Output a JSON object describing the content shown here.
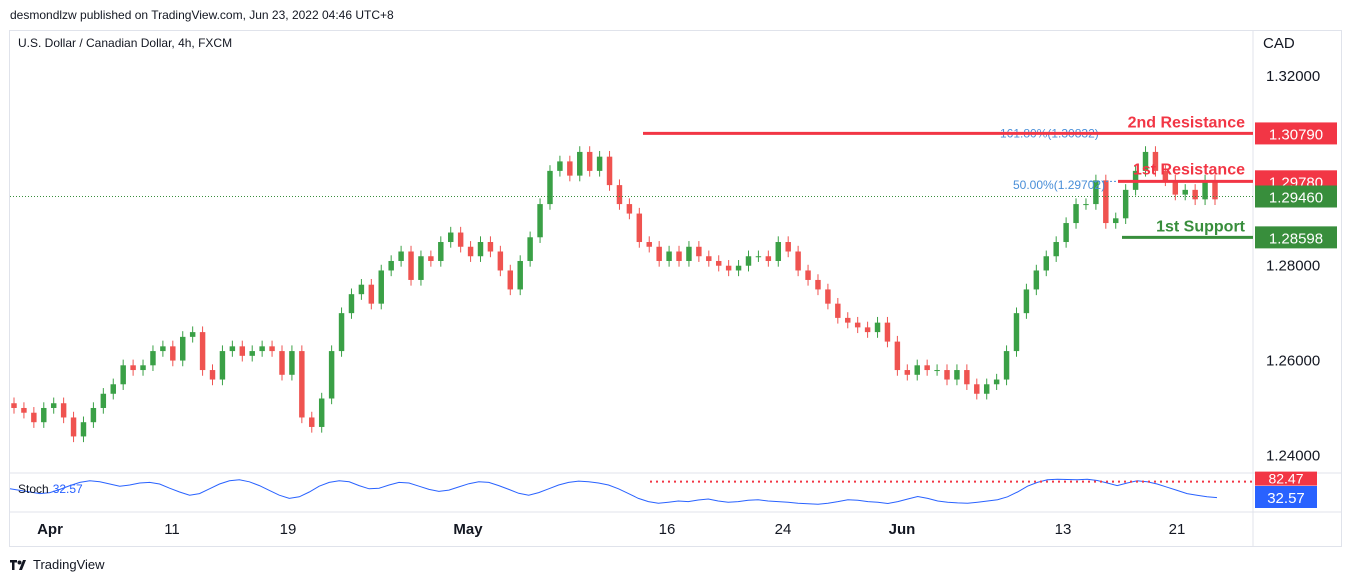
{
  "header": {
    "published_by": "desmondlzw published on TradingView.com, Jun 23, 2022 04:46 UTC+8"
  },
  "chart_title": "U.S. Dollar / Canadian Dollar, 4h, FXCM",
  "footer": {
    "brand": "TradingView",
    "logo_icon": "tradingview-logo-icon"
  },
  "colors": {
    "up": "#26a69a",
    "up_body": "#3aa046",
    "down": "#ef5350",
    "resistance": "#f23645",
    "support": "#388e3c",
    "stoch": "#2962ff",
    "fib": "#4a8fd8"
  },
  "chart_data": {
    "type": "candlestick",
    "price_axis": {
      "unit": "CAD",
      "ticks": [
        "1.32000",
        "1.28000",
        "1.26000",
        "1.24000"
      ],
      "tick_values": [
        1.32,
        1.28,
        1.26,
        1.24
      ],
      "ylim": [
        1.2365,
        1.3295
      ]
    },
    "time_axis": {
      "labels": [
        "Apr",
        "11",
        "19",
        "May",
        "16",
        "24",
        "Jun",
        "13",
        "21"
      ],
      "bold_labels": [
        "Apr",
        "May",
        "Jun"
      ]
    },
    "close_series": [
      1.25,
      1.249,
      1.247,
      1.25,
      1.251,
      1.248,
      1.244,
      1.247,
      1.25,
      1.253,
      1.255,
      1.259,
      1.258,
      1.259,
      1.262,
      1.263,
      1.26,
      1.265,
      1.266,
      1.258,
      1.256,
      1.262,
      1.263,
      1.261,
      1.262,
      1.263,
      1.262,
      1.257,
      1.262,
      1.248,
      1.246,
      1.252,
      1.262,
      1.27,
      1.274,
      1.276,
      1.272,
      1.279,
      1.281,
      1.283,
      1.277,
      1.282,
      1.281,
      1.285,
      1.287,
      1.284,
      1.282,
      1.285,
      1.283,
      1.279,
      1.275,
      1.281,
      1.286,
      1.293,
      1.3,
      1.302,
      1.299,
      1.304,
      1.3,
      1.303,
      1.297,
      1.293,
      1.291,
      1.285,
      1.284,
      1.281,
      1.283,
      1.281,
      1.284,
      1.282,
      1.281,
      1.28,
      1.279,
      1.28,
      1.282,
      1.282,
      1.281,
      1.285,
      1.283,
      1.279,
      1.277,
      1.275,
      1.272,
      1.269,
      1.268,
      1.267,
      1.266,
      1.268,
      1.264,
      1.258,
      1.257,
      1.259,
      1.258,
      1.258,
      1.256,
      1.258,
      1.255,
      1.253,
      1.255,
      1.256,
      1.262,
      1.27,
      1.275,
      1.279,
      1.282,
      1.285,
      1.289,
      1.293,
      1.293,
      1.298,
      1.289,
      1.29,
      1.296,
      1.3,
      1.304,
      1.3,
      1.298,
      1.295,
      1.296,
      1.294,
      1.298,
      1.294
    ],
    "levels": [
      {
        "label": "2nd Resistance",
        "price": "1.30790",
        "value": 1.3079,
        "color": "#f23645"
      },
      {
        "label": "1st Resistance",
        "price": "1.29780",
        "value": 1.2978,
        "color": "#f23645"
      },
      {
        "label": "1st Support",
        "price": "1.28598",
        "value": 1.28598,
        "color": "#388e3c"
      }
    ],
    "current_price": {
      "price": "1.29460",
      "value": 1.2946,
      "color": "#388e3c"
    },
    "fib_labels": [
      {
        "text": "161.80%(1.30832)",
        "value": 1.30832
      },
      {
        "text": "50.00%(1.29702)",
        "value": 1.29702
      }
    ],
    "stochastic": {
      "label": "Stoch",
      "value": "32.57",
      "upper_level": "82.47",
      "series": [
        60,
        55,
        50,
        45,
        48,
        58,
        70,
        80,
        85,
        82,
        75,
        68,
        72,
        78,
        80,
        75,
        62,
        50,
        40,
        45,
        60,
        75,
        85,
        88,
        82,
        70,
        55,
        40,
        30,
        35,
        50,
        68,
        80,
        85,
        82,
        70,
        60,
        62,
        72,
        80,
        78,
        68,
        58,
        52,
        56,
        66,
        76,
        82,
        80,
        70,
        58,
        46,
        40,
        48,
        60,
        72,
        80,
        84,
        82,
        78,
        72,
        60,
        45,
        30,
        20,
        15,
        18,
        22,
        20,
        25,
        28,
        22,
        18,
        20,
        24,
        26,
        22,
        20,
        18,
        15,
        13,
        12,
        15,
        20,
        26,
        24,
        20,
        18,
        14,
        20,
        28,
        36,
        30,
        22,
        18,
        16,
        15,
        18,
        22,
        26,
        35,
        50,
        68,
        80,
        88,
        90,
        89,
        88,
        90,
        86,
        78,
        70,
        78,
        85,
        82,
        75,
        65,
        55,
        45,
        40,
        35,
        32.57
      ]
    }
  }
}
